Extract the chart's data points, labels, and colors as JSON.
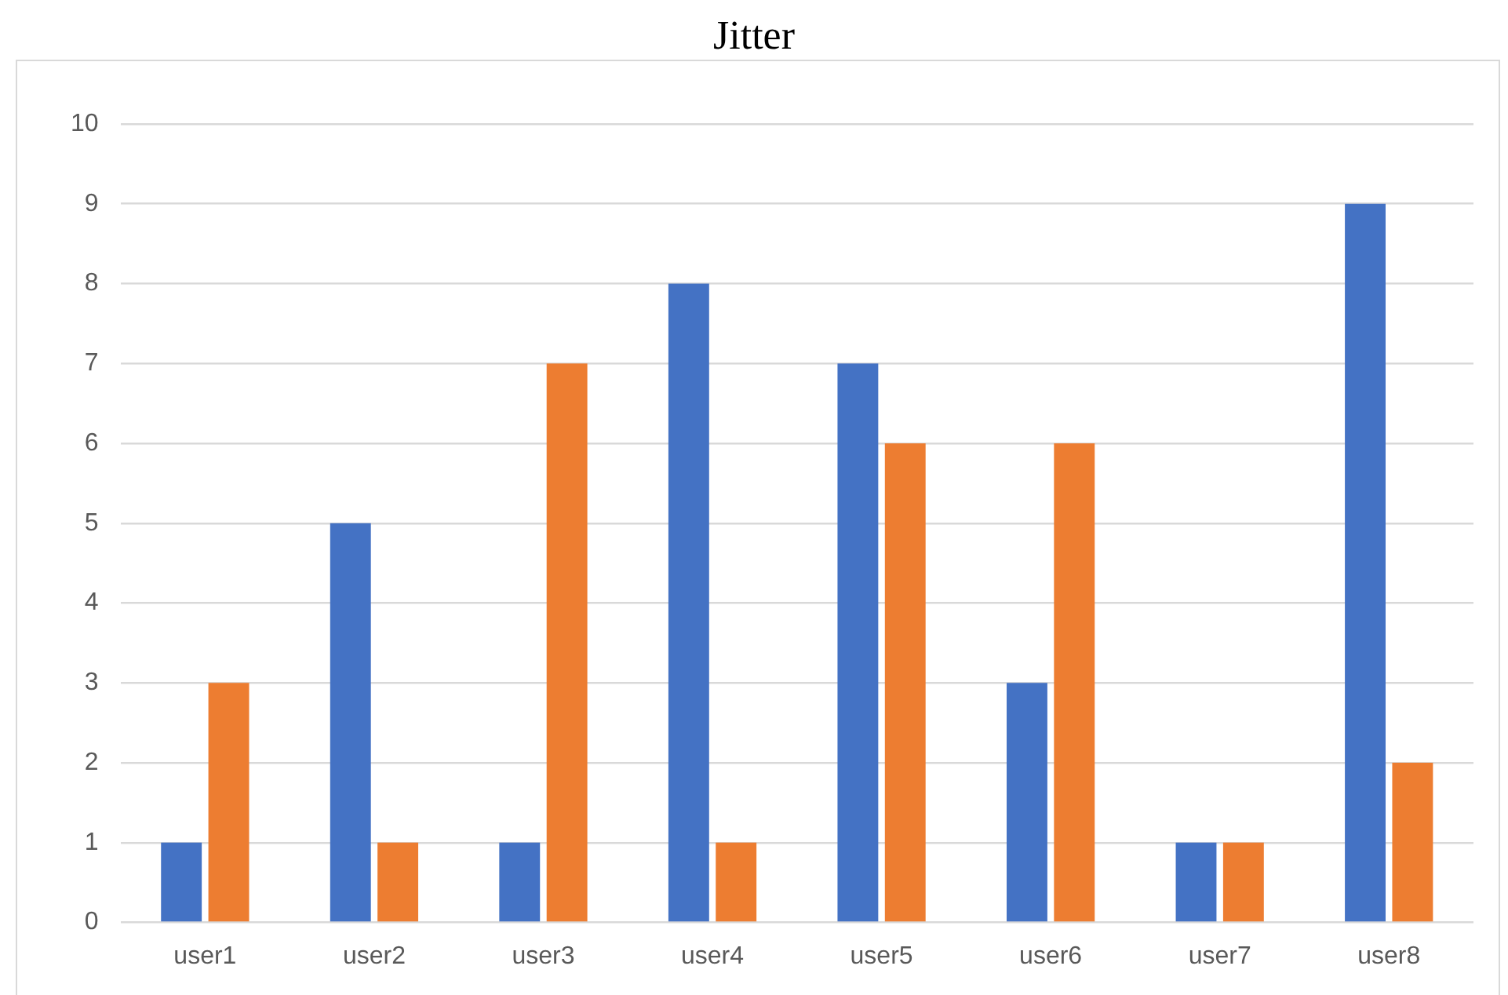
{
  "chart_data": {
    "type": "bar",
    "title": "Jitter",
    "categories": [
      "user1",
      "user2",
      "user3",
      "user4",
      "user5",
      "user6",
      "user7",
      "user8"
    ],
    "series": [
      {
        "color": "#4472c4",
        "values": [
          1,
          5,
          1,
          8,
          7,
          3,
          1,
          9
        ]
      },
      {
        "color": "#ed7d31",
        "values": [
          3,
          1,
          7,
          1,
          6,
          6,
          1,
          2
        ]
      }
    ],
    "ylim": [
      0,
      10
    ],
    "yticks": [
      0,
      1,
      2,
      3,
      4,
      5,
      6,
      7,
      8,
      9,
      10
    ],
    "grid": "y",
    "legend": false
  }
}
